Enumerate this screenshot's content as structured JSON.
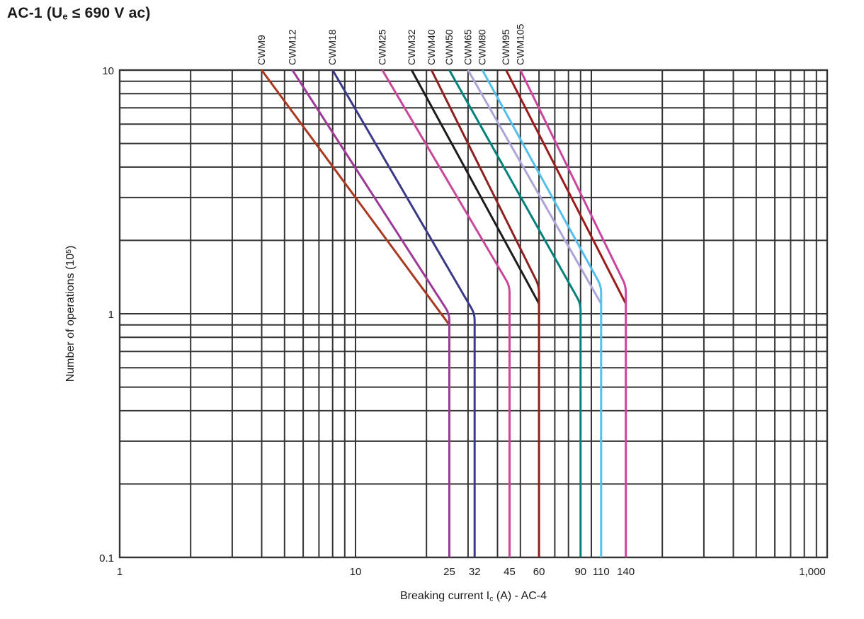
{
  "page": {
    "background": "#ffffff",
    "text_color": "#1a1a1a"
  },
  "title": {
    "parts": [
      {
        "t": "AC-1 (U"
      },
      {
        "t": "e",
        "style": "sub"
      },
      {
        "t": " ≤ 690 V ac)"
      }
    ]
  },
  "chart_data": {
    "type": "line",
    "title": "AC-1 (Ue ≤ 690 V ac)",
    "x_scale": "log",
    "y_scale": "log",
    "xlim": [
      1,
      1000
    ],
    "ylim": [
      0.1,
      10
    ],
    "grid": true,
    "grid_color": "#343434",
    "axis_color": "#343434",
    "text_color": "#1a1a1a",
    "xlabel_parts": [
      {
        "t": "Breaking current I"
      },
      {
        "t": "c",
        "style": "sub"
      },
      {
        "t": " (A) - AC-4"
      }
    ],
    "ylabel_parts": [
      {
        "t": "Number of operations (10"
      },
      {
        "t": "5",
        "style": "sup"
      },
      {
        "t": ")"
      }
    ],
    "x_ticks": [
      {
        "v": 1,
        "label": "1"
      },
      {
        "v": 10,
        "label": "10"
      },
      {
        "v": 25,
        "label": "25"
      },
      {
        "v": 32,
        "label": "32"
      },
      {
        "v": 45,
        "label": "45"
      },
      {
        "v": 60,
        "label": "60"
      },
      {
        "v": 90,
        "label": "90"
      },
      {
        "v": 110,
        "label": "110"
      },
      {
        "v": 140,
        "label": "140"
      },
      {
        "v": 1000,
        "label": "1,000"
      }
    ],
    "y_ticks": [
      {
        "v": 10,
        "label": "10"
      },
      {
        "v": 1,
        "label": "1"
      },
      {
        "v": 0.1,
        "label": "0.1"
      }
    ],
    "series": [
      {
        "name": "CWM9",
        "color": "#a93a1f",
        "points": [
          [
            4,
            10
          ],
          [
            25,
            0.9
          ]
        ]
      },
      {
        "name": "CWM12",
        "color": "#9d3a97",
        "points": [
          [
            5.4,
            10
          ],
          [
            25,
            1.0
          ],
          [
            25,
            0.1
          ]
        ]
      },
      {
        "name": "CWM18",
        "color": "#3a3a88",
        "points": [
          [
            8,
            10
          ],
          [
            32,
            1.0
          ],
          [
            32,
            0.1
          ]
        ]
      },
      {
        "name": "CWM25",
        "color": "#c9479b",
        "points": [
          [
            13,
            10
          ],
          [
            45,
            1.3
          ],
          [
            45,
            0.1
          ]
        ]
      },
      {
        "name": "CWM32",
        "color": "#1c1c1c",
        "points": [
          [
            17.3,
            10
          ],
          [
            60,
            1.1
          ]
        ]
      },
      {
        "name": "CWM40",
        "color": "#8d2020",
        "points": [
          [
            21,
            10
          ],
          [
            60,
            1.3
          ],
          [
            60,
            0.1
          ]
        ]
      },
      {
        "name": "CWM50",
        "color": "#00817b",
        "points": [
          [
            25,
            10
          ],
          [
            90,
            1.1
          ],
          [
            90,
            0.1
          ]
        ]
      },
      {
        "name": "CWM65",
        "color": "#aba5d8",
        "points": [
          [
            30,
            10
          ],
          [
            110,
            1.1
          ]
        ]
      },
      {
        "name": "CWM80",
        "color": "#54bfec",
        "points": [
          [
            34.5,
            10
          ],
          [
            110,
            1.3
          ],
          [
            110,
            0.1
          ]
        ]
      },
      {
        "name": "CWM95",
        "color": "#9b1b1b",
        "points": [
          [
            43.5,
            10
          ],
          [
            140,
            1.1
          ]
        ]
      },
      {
        "name": "CWM105",
        "color": "#cb45a0",
        "points": [
          [
            50,
            10
          ],
          [
            140,
            1.3
          ],
          [
            140,
            0.1
          ]
        ]
      }
    ]
  }
}
